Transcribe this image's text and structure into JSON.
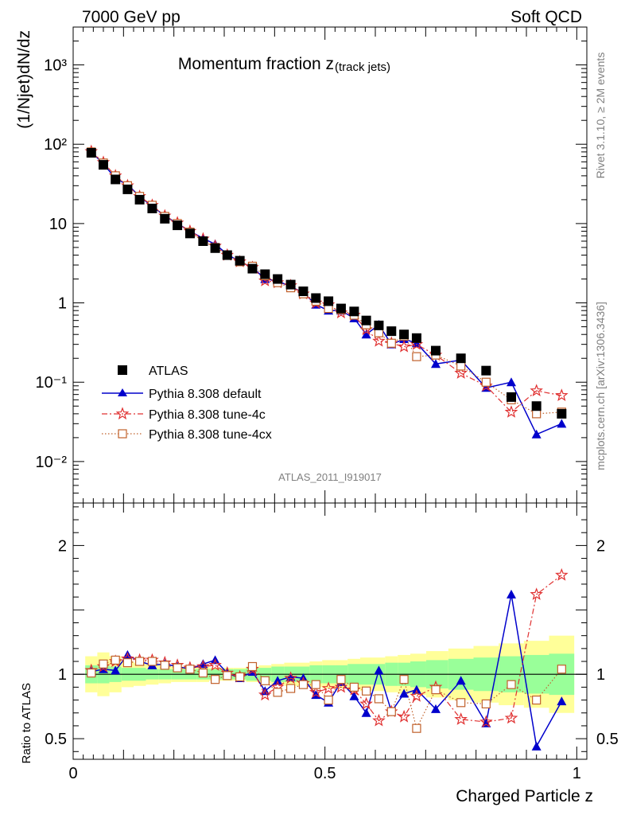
{
  "header": {
    "left": "7000 GeV pp",
    "right": "Soft QCD"
  },
  "side": {
    "rivet": "Rivet 3.1.10, ≥ 2M events",
    "mcplots": "mcplots.cern.ch [arXiv:1306.3436]"
  },
  "colors": {
    "atlas": "#000000",
    "default": "#0000cc",
    "tune4c": "#e03030",
    "tune4cx": "#c0602a",
    "band_inner": "#99ff99",
    "band_outer": "#ffff99"
  },
  "chart_data": [
    {
      "type": "scatter",
      "title": "Momentum fraction z",
      "title_sub": "(track jets)",
      "analysis_label": "ATLAS_2011_I919017",
      "ylabel": "(1/Njet)dN/dz",
      "yscale": "log",
      "ylim": [
        0.003,
        3000
      ],
      "xlim": [
        0,
        1.02
      ],
      "ytick_labels": [
        "10⁻²",
        "10⁻¹",
        "1",
        "10",
        "10²",
        "10³"
      ],
      "legend_position": "lower-left",
      "x": [
        0.036,
        0.06,
        0.084,
        0.108,
        0.132,
        0.157,
        0.182,
        0.207,
        0.232,
        0.258,
        0.282,
        0.306,
        0.331,
        0.356,
        0.381,
        0.406,
        0.432,
        0.457,
        0.482,
        0.507,
        0.532,
        0.558,
        0.582,
        0.607,
        0.632,
        0.657,
        0.682,
        0.72,
        0.77,
        0.82,
        0.87,
        0.92,
        0.97
      ],
      "series": [
        {
          "name": "ATLAS",
          "key": "atlas",
          "marker": "square",
          "values": [
            78,
            55,
            36,
            27,
            20,
            15.5,
            11.5,
            9.5,
            7.5,
            6.0,
            4.9,
            4.0,
            3.4,
            2.7,
            2.3,
            2.0,
            1.7,
            1.4,
            1.15,
            1.05,
            0.85,
            0.78,
            0.6,
            0.52,
            0.44,
            0.4,
            0.36,
            0.25,
            0.2,
            0.14,
            0.065,
            0.05,
            0.04
          ]
        },
        {
          "name": "Pythia 8.308 default",
          "key": "default",
          "marker": "triangle",
          "values": [
            80,
            57,
            37,
            31,
            22,
            16.5,
            12.5,
            10.0,
            8.0,
            6.5,
            5.5,
            4.1,
            3.3,
            2.8,
            2.0,
            1.9,
            1.6,
            1.35,
            0.95,
            0.8,
            0.8,
            0.64,
            0.4,
            0.53,
            0.3,
            0.35,
            0.31,
            0.17,
            0.19,
            0.085,
            0.1,
            0.022,
            0.03
          ]
        },
        {
          "name": "Pythia 8.308 tune-4c",
          "key": "tune4c",
          "marker": "star",
          "values": [
            81,
            59,
            40,
            30,
            22,
            17,
            12.5,
            10.2,
            8.0,
            6.4,
            5.2,
            4.0,
            3.3,
            2.8,
            1.9,
            1.8,
            1.65,
            1.3,
            1.0,
            0.95,
            0.75,
            0.7,
            0.46,
            0.33,
            0.31,
            0.28,
            0.3,
            0.22,
            0.13,
            0.09,
            0.042,
            0.078,
            0.068
          ]
        },
        {
          "name": "Pythia 8.308 tune-4cx",
          "key": "tune4cx",
          "marker": "open-square",
          "values": [
            80,
            58,
            40,
            30,
            22,
            17,
            12.3,
            10.0,
            7.8,
            6.0,
            5.0,
            4.0,
            3.3,
            2.9,
            2.2,
            1.8,
            1.55,
            1.3,
            1.05,
            0.85,
            0.82,
            0.7,
            0.53,
            0.42,
            0.31,
            0.38,
            0.21,
            0.22,
            0.16,
            0.1,
            0.06,
            0.04,
            0.042
          ]
        }
      ]
    },
    {
      "type": "scatter",
      "title": "",
      "ylabel": "Ratio to ATLAS",
      "xlabel": "Charged Particle z",
      "ylim": [
        0.34,
        2.33
      ],
      "xlim": [
        0,
        1.02
      ],
      "yticks": [
        0.5,
        1,
        2
      ],
      "ytick_labels": [
        "0.5",
        "1",
        "2"
      ],
      "xticks": [
        0,
        0.5,
        1
      ],
      "xtick_labels": [
        "0",
        "0.5",
        "1"
      ],
      "reference_line": 1,
      "x": [
        0.036,
        0.06,
        0.084,
        0.108,
        0.132,
        0.157,
        0.182,
        0.207,
        0.232,
        0.258,
        0.282,
        0.306,
        0.331,
        0.356,
        0.381,
        0.406,
        0.432,
        0.457,
        0.482,
        0.507,
        0.532,
        0.558,
        0.582,
        0.607,
        0.632,
        0.657,
        0.682,
        0.72,
        0.77,
        0.82,
        0.87,
        0.92,
        0.97
      ],
      "series": [
        {
          "name": "Pythia 8.308 default",
          "key": "default",
          "marker": "triangle",
          "values": [
            1.02,
            1.04,
            1.03,
            1.15,
            1.1,
            1.07,
            1.08,
            1.06,
            1.04,
            1.08,
            1.11,
            1.01,
            0.97,
            1.02,
            0.87,
            0.95,
            0.98,
            0.97,
            0.84,
            0.78,
            0.94,
            0.83,
            0.7,
            1.03,
            0.71,
            0.85,
            0.88,
            0.73,
            0.95,
            0.62,
            1.62,
            0.44,
            0.79
          ]
        },
        {
          "name": "Pythia 8.308 tune-4c",
          "key": "tune4c",
          "marker": "star",
          "values": [
            1.03,
            1.06,
            1.1,
            1.12,
            1.11,
            1.11,
            1.09,
            1.07,
            1.05,
            1.06,
            1.07,
            1.01,
            0.98,
            1.04,
            0.84,
            0.9,
            0.97,
            0.93,
            0.86,
            0.89,
            0.9,
            0.88,
            0.77,
            0.64,
            0.71,
            0.67,
            0.83,
            0.9,
            0.65,
            0.63,
            0.66,
            1.62,
            1.77
          ]
        },
        {
          "name": "Pythia 8.308 tune-4cx",
          "key": "tune4cx",
          "marker": "open-square",
          "values": [
            1.01,
            1.08,
            1.11,
            1.09,
            1.1,
            1.1,
            1.07,
            1.05,
            1.04,
            1.01,
            0.96,
            0.99,
            0.98,
            1.06,
            0.95,
            0.86,
            0.89,
            0.92,
            0.92,
            0.8,
            0.96,
            0.9,
            0.87,
            0.81,
            0.71,
            0.96,
            0.58,
            0.88,
            0.78,
            0.77,
            0.92,
            0.8,
            1.04
          ]
        }
      ],
      "uncertainty_bands": {
        "inner": [
          0.07,
          0.07,
          0.06,
          0.05,
          0.05,
          0.04,
          0.04,
          0.04,
          0.04,
          0.04,
          0.04,
          0.04,
          0.04,
          0.05,
          0.05,
          0.06,
          0.06,
          0.06,
          0.07,
          0.07,
          0.07,
          0.08,
          0.08,
          0.08,
          0.09,
          0.09,
          0.1,
          0.11,
          0.12,
          0.13,
          0.14,
          0.15,
          0.16
        ],
        "outer": [
          0.14,
          0.17,
          0.14,
          0.1,
          0.09,
          0.08,
          0.07,
          0.06,
          0.06,
          0.06,
          0.05,
          0.05,
          0.05,
          0.06,
          0.07,
          0.08,
          0.09,
          0.09,
          0.1,
          0.11,
          0.11,
          0.12,
          0.13,
          0.13,
          0.14,
          0.15,
          0.16,
          0.18,
          0.2,
          0.22,
          0.24,
          0.26,
          0.3
        ]
      }
    }
  ]
}
